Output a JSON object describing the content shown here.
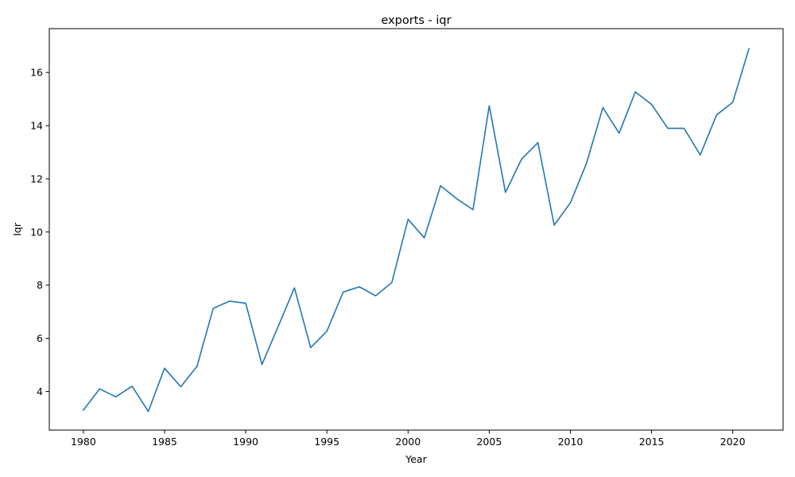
{
  "chart_data": {
    "type": "line",
    "title": "exports - iqr",
    "xlabel": "Year",
    "ylabel": "Iqr",
    "xlim": [
      1977.9,
      2023.1
    ],
    "ylim": [
      2.55,
      17.65
    ],
    "xticks": [
      1980,
      1985,
      1990,
      1995,
      2000,
      2005,
      2010,
      2015,
      2020
    ],
    "yticks": [
      4,
      6,
      8,
      10,
      12,
      14,
      16
    ],
    "grid": false,
    "color": "#1f77b4",
    "x": [
      1980,
      1981,
      1982,
      1983,
      1984,
      1985,
      1986,
      1987,
      1988,
      1989,
      1990,
      1991,
      1992,
      1993,
      1994,
      1995,
      1996,
      1997,
      1998,
      1999,
      2000,
      2001,
      2002,
      2003,
      2004,
      2005,
      2006,
      2007,
      2008,
      2009,
      2010,
      2011,
      2012,
      2013,
      2014,
      2015,
      2016,
      2017,
      2018,
      2019,
      2020,
      2021
    ],
    "y": [
      3.3,
      4.1,
      3.8,
      4.2,
      3.25,
      4.88,
      4.18,
      4.95,
      7.13,
      7.4,
      7.32,
      5.02,
      6.45,
      7.9,
      5.65,
      6.27,
      7.74,
      7.94,
      7.6,
      8.1,
      10.48,
      9.78,
      11.74,
      11.25,
      10.84,
      14.75,
      11.49,
      12.75,
      13.36,
      10.26,
      11.1,
      12.6,
      14.68,
      13.72,
      15.27,
      14.8,
      13.9,
      13.9,
      12.9,
      14.4,
      14.88,
      16.9
    ]
  }
}
